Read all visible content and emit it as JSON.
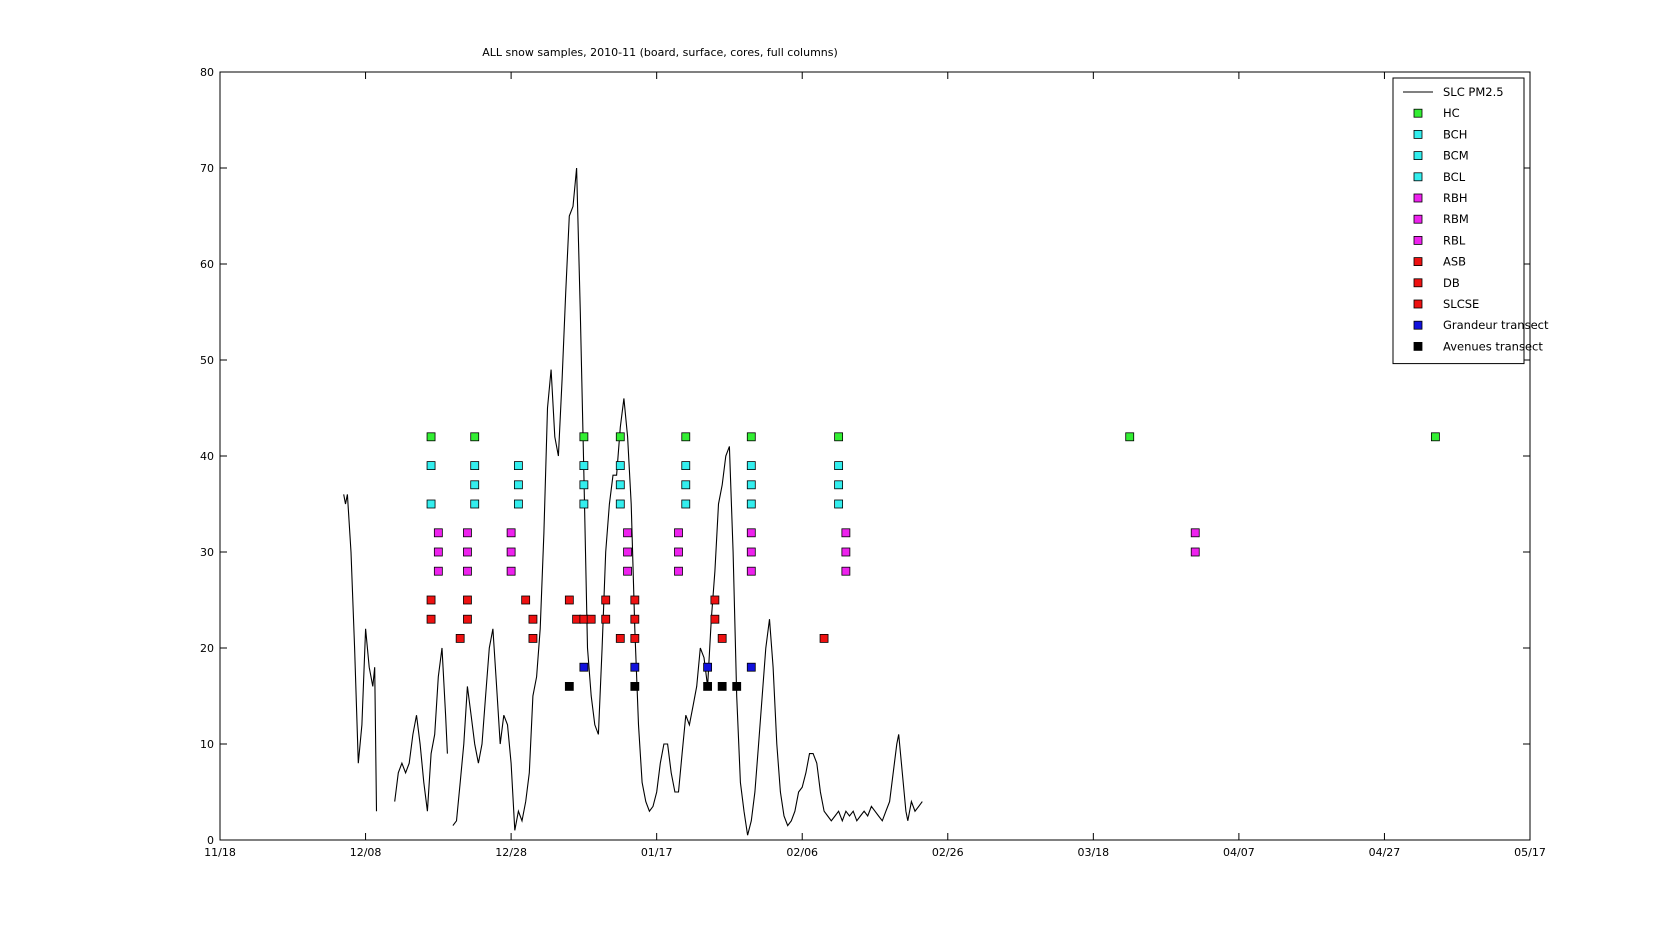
{
  "chart_data": {
    "type": "scatter",
    "title": "ALL snow samples, 2010-11 (board, surface, cores, full columns)",
    "xlabel": "",
    "ylabel": "",
    "ylim": [
      0,
      80
    ],
    "yticks": [
      0,
      10,
      20,
      30,
      40,
      50,
      60,
      70,
      80
    ],
    "xlim": [
      "2010-11-18",
      "2011-05-17"
    ],
    "xticks": [
      "2010-11-18",
      "2010-12-08",
      "2010-12-28",
      "2011-01-17",
      "2011-02-06",
      "2011-02-26",
      "2011-03-18",
      "2011-04-07",
      "2011-04-27",
      "2011-05-17"
    ],
    "xtick_labels": [
      "11/18",
      "12/08",
      "12/28",
      "01/17",
      "02/06",
      "02/26",
      "03/18",
      "04/07",
      "04/27",
      "05/17"
    ],
    "grid": false,
    "legend_position": "top-right",
    "line_series": {
      "name": "SLC PM2.5",
      "color": "#000000",
      "segments": [
        [
          [
            "2010-12-05",
            36
          ],
          [
            "2010-12-05T06",
            35
          ],
          [
            "2010-12-05T12",
            36
          ],
          [
            "2010-12-06",
            30
          ],
          [
            "2010-12-06T12",
            20
          ],
          [
            "2010-12-07",
            8
          ],
          [
            "2010-12-07T12",
            12
          ],
          [
            "2010-12-08",
            22
          ],
          [
            "2010-12-08T12",
            18
          ],
          [
            "2010-12-09",
            16
          ],
          [
            "2010-12-09T06",
            18
          ],
          [
            "2010-12-09T12",
            3
          ]
        ],
        [
          [
            "2010-12-12",
            4
          ],
          [
            "2010-12-12T12",
            7
          ],
          [
            "2010-12-13",
            8
          ],
          [
            "2010-12-13T12",
            7
          ],
          [
            "2010-12-14",
            8
          ],
          [
            "2010-12-14T12",
            11
          ],
          [
            "2010-12-15",
            13
          ],
          [
            "2010-12-15T12",
            10
          ],
          [
            "2010-12-16",
            6
          ],
          [
            "2010-12-16T12",
            3
          ],
          [
            "2010-12-17",
            9
          ],
          [
            "2010-12-17T12",
            11
          ],
          [
            "2010-12-18",
            17
          ],
          [
            "2010-12-18T12",
            20
          ],
          [
            "2010-12-19",
            13
          ],
          [
            "2010-12-19T06",
            9
          ]
        ],
        [
          [
            "2010-12-20",
            1.5
          ],
          [
            "2010-12-20T12",
            2
          ],
          [
            "2010-12-21",
            6
          ],
          [
            "2010-12-21T12",
            10
          ],
          [
            "2010-12-22",
            16
          ],
          [
            "2010-12-22T12",
            13
          ],
          [
            "2010-12-23",
            10
          ],
          [
            "2010-12-23T12",
            8
          ],
          [
            "2010-12-24",
            10
          ],
          [
            "2010-12-24T12",
            15
          ],
          [
            "2010-12-25",
            20
          ],
          [
            "2010-12-25T12",
            22
          ],
          [
            "2010-12-26",
            16
          ],
          [
            "2010-12-26T12",
            10
          ],
          [
            "2010-12-27",
            13
          ],
          [
            "2010-12-27T12",
            12
          ],
          [
            "2010-12-28",
            8
          ],
          [
            "2010-12-28T12",
            1
          ],
          [
            "2010-12-29",
            3
          ],
          [
            "2010-12-29T12",
            2
          ],
          [
            "2010-12-30",
            4
          ],
          [
            "2010-12-30T12",
            7
          ],
          [
            "2010-12-31",
            15
          ],
          [
            "2010-12-31T12",
            17
          ],
          [
            "2011-01-01",
            22
          ],
          [
            "2011-01-01T12",
            32
          ],
          [
            "2011-01-02",
            45
          ],
          [
            "2011-01-02T12",
            49
          ],
          [
            "2011-01-03",
            42
          ],
          [
            "2011-01-03T12",
            40
          ],
          [
            "2011-01-04",
            48
          ],
          [
            "2011-01-04T12",
            57
          ],
          [
            "2011-01-05",
            65
          ],
          [
            "2011-01-05T12",
            66
          ],
          [
            "2011-01-06",
            70
          ],
          [
            "2011-01-06T12",
            55
          ],
          [
            "2011-01-07",
            38
          ],
          [
            "2011-01-07T12",
            20
          ],
          [
            "2011-01-08",
            15
          ],
          [
            "2011-01-08T12",
            12
          ],
          [
            "2011-01-09",
            11
          ],
          [
            "2011-01-09T12",
            20
          ],
          [
            "2011-01-10",
            30
          ],
          [
            "2011-01-10T12",
            35
          ],
          [
            "2011-01-11",
            38
          ],
          [
            "2011-01-11T12",
            38
          ],
          [
            "2011-01-12",
            43
          ],
          [
            "2011-01-12T12",
            46
          ],
          [
            "2011-01-13",
            42
          ],
          [
            "2011-01-13T12",
            35
          ],
          [
            "2011-01-14",
            22
          ],
          [
            "2011-01-14T12",
            12
          ],
          [
            "2011-01-15",
            6
          ],
          [
            "2011-01-15T12",
            4
          ],
          [
            "2011-01-16",
            3
          ],
          [
            "2011-01-16T12",
            3.5
          ],
          [
            "2011-01-17",
            5
          ],
          [
            "2011-01-17T12",
            8
          ],
          [
            "2011-01-18",
            10
          ],
          [
            "2011-01-18T12",
            10
          ],
          [
            "2011-01-19",
            7
          ],
          [
            "2011-01-19T12",
            5
          ],
          [
            "2011-01-20",
            5
          ],
          [
            "2011-01-20T12",
            9
          ],
          [
            "2011-01-21",
            13
          ],
          [
            "2011-01-21T12",
            12
          ],
          [
            "2011-01-22",
            14
          ],
          [
            "2011-01-22T12",
            16
          ],
          [
            "2011-01-23",
            20
          ],
          [
            "2011-01-23T12",
            19
          ],
          [
            "2011-01-24",
            16
          ],
          [
            "2011-01-24T12",
            23
          ],
          [
            "2011-01-25",
            28
          ],
          [
            "2011-01-25T12",
            35
          ],
          [
            "2011-01-26",
            37
          ],
          [
            "2011-01-26T12",
            40
          ],
          [
            "2011-01-27",
            41
          ],
          [
            "2011-01-27T12",
            30
          ],
          [
            "2011-01-28",
            15
          ],
          [
            "2011-01-28T12",
            6
          ],
          [
            "2011-01-29",
            3
          ],
          [
            "2011-01-29T12",
            0.5
          ],
          [
            "2011-01-30",
            2
          ],
          [
            "2011-01-30T12",
            5
          ],
          [
            "2011-01-31",
            10
          ],
          [
            "2011-01-31T12",
            15
          ],
          [
            "2011-02-01",
            20
          ],
          [
            "2011-02-01T12",
            23
          ],
          [
            "2011-02-02",
            18
          ],
          [
            "2011-02-02T12",
            10
          ],
          [
            "2011-02-03",
            5
          ],
          [
            "2011-02-03T12",
            2.5
          ],
          [
            "2011-02-04",
            1.5
          ],
          [
            "2011-02-04T12",
            2
          ],
          [
            "2011-02-05",
            3
          ],
          [
            "2011-02-05T12",
            5
          ],
          [
            "2011-02-06",
            5.5
          ],
          [
            "2011-02-06T12",
            7
          ],
          [
            "2011-02-07",
            9
          ],
          [
            "2011-02-07T12",
            9
          ],
          [
            "2011-02-08",
            8
          ],
          [
            "2011-02-08T12",
            5
          ],
          [
            "2011-02-09",
            3
          ],
          [
            "2011-02-09T12",
            2.5
          ],
          [
            "2011-02-10",
            2
          ],
          [
            "2011-02-10T12",
            2.5
          ],
          [
            "2011-02-11",
            3
          ],
          [
            "2011-02-11T12",
            2
          ],
          [
            "2011-02-12",
            3
          ],
          [
            "2011-02-12T12",
            2.5
          ],
          [
            "2011-02-13",
            3
          ],
          [
            "2011-02-13T12",
            2
          ],
          [
            "2011-02-14",
            2.5
          ],
          [
            "2011-02-14T12",
            3
          ],
          [
            "2011-02-15",
            2.5
          ],
          [
            "2011-02-15T12",
            3.5
          ],
          [
            "2011-02-16",
            3
          ],
          [
            "2011-02-16T12",
            2.5
          ],
          [
            "2011-02-17",
            2
          ],
          [
            "2011-02-17T12",
            3
          ],
          [
            "2011-02-18",
            4
          ],
          [
            "2011-02-18T12",
            7
          ],
          [
            "2011-02-19",
            10
          ],
          [
            "2011-02-19T06",
            11
          ],
          [
            "2011-02-19T12",
            9
          ],
          [
            "2011-02-20",
            5
          ],
          [
            "2011-02-20T06",
            3
          ],
          [
            "2011-02-20T12",
            2
          ],
          [
            "2011-02-21",
            4
          ],
          [
            "2011-02-21T12",
            3
          ],
          [
            "2011-02-22",
            3.5
          ],
          [
            "2011-02-22T12",
            4
          ]
        ]
      ]
    },
    "series": [
      {
        "name": "HC",
        "color": "#33ee33",
        "points": [
          [
            "2010-12-17",
            42
          ],
          [
            "2010-12-23",
            42
          ],
          [
            "2011-01-07",
            42
          ],
          [
            "2011-01-12",
            42
          ],
          [
            "2011-01-21",
            42
          ],
          [
            "2011-01-30",
            42
          ],
          [
            "2011-02-11",
            42
          ],
          [
            "2011-03-23",
            42
          ],
          [
            "2011-05-04",
            42
          ]
        ]
      },
      {
        "name": "BCH",
        "color": "#33eeee",
        "points": [
          [
            "2010-12-17",
            39
          ],
          [
            "2010-12-23",
            39
          ],
          [
            "2010-12-29",
            39
          ],
          [
            "2011-01-07",
            39
          ],
          [
            "2011-01-12",
            39
          ],
          [
            "2011-01-21",
            39
          ],
          [
            "2011-01-30",
            39
          ],
          [
            "2011-02-11",
            39
          ]
        ]
      },
      {
        "name": "BCM",
        "color": "#33eeee",
        "points": [
          [
            "2010-12-23",
            37
          ],
          [
            "2010-12-29",
            37
          ],
          [
            "2011-01-07",
            37
          ],
          [
            "2011-01-12",
            37
          ],
          [
            "2011-01-21",
            37
          ],
          [
            "2011-01-30",
            37
          ],
          [
            "2011-02-11",
            37
          ]
        ]
      },
      {
        "name": "BCL",
        "color": "#33eeee",
        "points": [
          [
            "2010-12-17",
            35
          ],
          [
            "2010-12-23",
            35
          ],
          [
            "2010-12-29",
            35
          ],
          [
            "2011-01-07",
            35
          ],
          [
            "2011-01-12",
            35
          ],
          [
            "2011-01-21",
            35
          ],
          [
            "2011-01-30",
            35
          ],
          [
            "2011-02-11",
            35
          ]
        ]
      },
      {
        "name": "RBH",
        "color": "#ee22ee",
        "points": [
          [
            "2010-12-18",
            32
          ],
          [
            "2010-12-22",
            32
          ],
          [
            "2010-12-28",
            32
          ],
          [
            "2011-01-13",
            32
          ],
          [
            "2011-01-20",
            32
          ],
          [
            "2011-01-30",
            32
          ],
          [
            "2011-02-12",
            32
          ],
          [
            "2011-04-01",
            32
          ]
        ]
      },
      {
        "name": "RBM",
        "color": "#ee22ee",
        "points": [
          [
            "2010-12-18",
            30
          ],
          [
            "2010-12-22",
            30
          ],
          [
            "2010-12-28",
            30
          ],
          [
            "2011-01-13",
            30
          ],
          [
            "2011-01-20",
            30
          ],
          [
            "2011-01-30",
            30
          ],
          [
            "2011-02-12",
            30
          ],
          [
            "2011-04-01",
            30
          ]
        ]
      },
      {
        "name": "RBL",
        "color": "#ee22ee",
        "points": [
          [
            "2010-12-18",
            28
          ],
          [
            "2010-12-22",
            28
          ],
          [
            "2010-12-28",
            28
          ],
          [
            "2011-01-13",
            28
          ],
          [
            "2011-01-20",
            28
          ],
          [
            "2011-01-30",
            28
          ],
          [
            "2011-02-12",
            28
          ]
        ]
      },
      {
        "name": "ASB",
        "color": "#ee1111",
        "points": [
          [
            "2010-12-17",
            25
          ],
          [
            "2010-12-22",
            25
          ],
          [
            "2010-12-30",
            25
          ],
          [
            "2011-01-05",
            25
          ],
          [
            "2011-01-10",
            25
          ],
          [
            "2011-01-14",
            25
          ],
          [
            "2011-01-25",
            25
          ]
        ]
      },
      {
        "name": "DB",
        "color": "#ee1111",
        "points": [
          [
            "2010-12-17",
            23
          ],
          [
            "2010-12-22",
            23
          ],
          [
            "2010-12-31",
            23
          ],
          [
            "2011-01-06",
            23
          ],
          [
            "2011-01-07",
            23
          ],
          [
            "2011-01-08",
            23
          ],
          [
            "2011-01-10",
            23
          ],
          [
            "2011-01-14",
            23
          ],
          [
            "2011-01-25",
            23
          ]
        ]
      },
      {
        "name": "SLCSE",
        "color": "#ee1111",
        "points": [
          [
            "2010-12-21",
            21
          ],
          [
            "2010-12-31",
            21
          ],
          [
            "2011-01-12",
            21
          ],
          [
            "2011-01-14",
            21
          ],
          [
            "2011-01-26",
            21
          ],
          [
            "2011-02-09",
            21
          ]
        ]
      },
      {
        "name": "Grandeur transect",
        "color": "#1111dd",
        "points": [
          [
            "2011-01-07",
            18
          ],
          [
            "2011-01-14",
            18
          ],
          [
            "2011-01-24",
            18
          ],
          [
            "2011-01-30",
            18
          ]
        ]
      },
      {
        "name": "Avenues transect",
        "color": "#000000",
        "points": [
          [
            "2011-01-05",
            16
          ],
          [
            "2011-01-14",
            16
          ],
          [
            "2011-01-24",
            16
          ],
          [
            "2011-01-26",
            16
          ],
          [
            "2011-01-28",
            16
          ]
        ]
      }
    ]
  }
}
